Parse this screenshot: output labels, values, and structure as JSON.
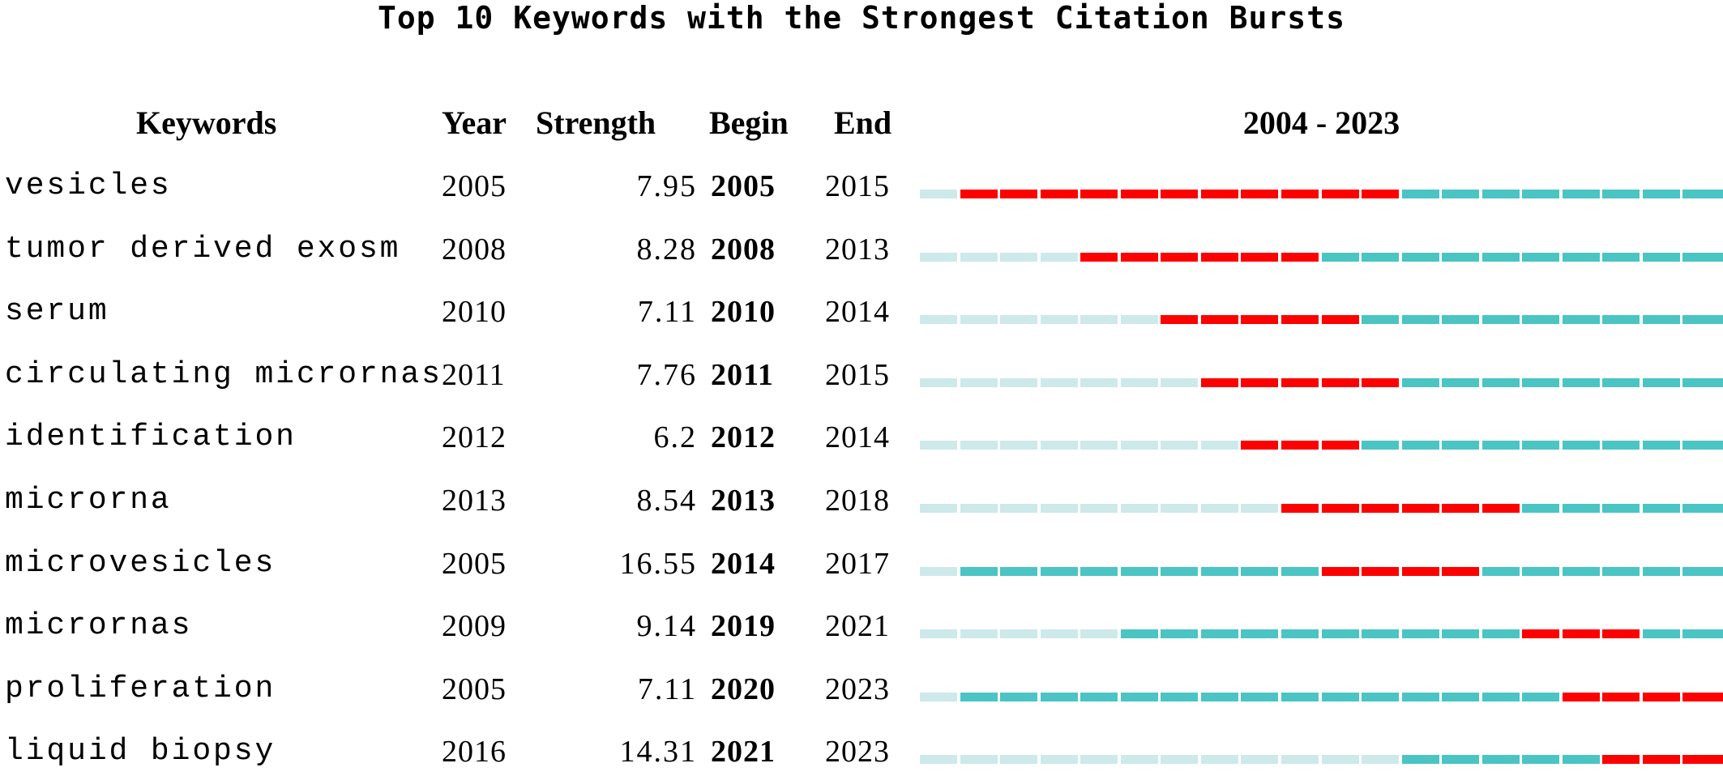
{
  "chart_data": {
    "type": "table",
    "title": "Top 10 Keywords with the Strongest Citation Bursts",
    "columns": [
      "Keywords",
      "Year",
      "Strength",
      "Begin",
      "End"
    ],
    "range_label": "2004 - 2023",
    "year_range": [
      2004,
      2023
    ],
    "colors": {
      "burst": "#ff0000",
      "active": "#4bc4c4",
      "inactive": "#cde9ea"
    },
    "rows": [
      {
        "keyword": "vesicles",
        "year": "2005",
        "strength": "7.95",
        "begin": "2005",
        "end": "2015"
      },
      {
        "keyword": "tumor derived exosm",
        "year": "2008",
        "strength": "8.28",
        "begin": "2008",
        "end": "2013"
      },
      {
        "keyword": "serum",
        "year": "2010",
        "strength": "7.11",
        "begin": "2010",
        "end": "2014"
      },
      {
        "keyword": "circulating micrornas",
        "year": "2011",
        "strength": "7.76",
        "begin": "2011",
        "end": "2015"
      },
      {
        "keyword": "identification",
        "year": "2012",
        "strength": "6.2",
        "begin": "2012",
        "end": "2014"
      },
      {
        "keyword": "microrna",
        "year": "2013",
        "strength": "8.54",
        "begin": "2013",
        "end": "2018"
      },
      {
        "keyword": "microvesicles",
        "year": "2005",
        "strength": "16.55",
        "begin": "2014",
        "end": "2017"
      },
      {
        "keyword": "micrornas",
        "year": "2009",
        "strength": "9.14",
        "begin": "2019",
        "end": "2021"
      },
      {
        "keyword": "proliferation",
        "year": "2005",
        "strength": "7.11",
        "begin": "2020",
        "end": "2023"
      },
      {
        "keyword": "liquid biopsy",
        "year": "2016",
        "strength": "14.31",
        "begin": "2021",
        "end": "2023"
      }
    ]
  }
}
